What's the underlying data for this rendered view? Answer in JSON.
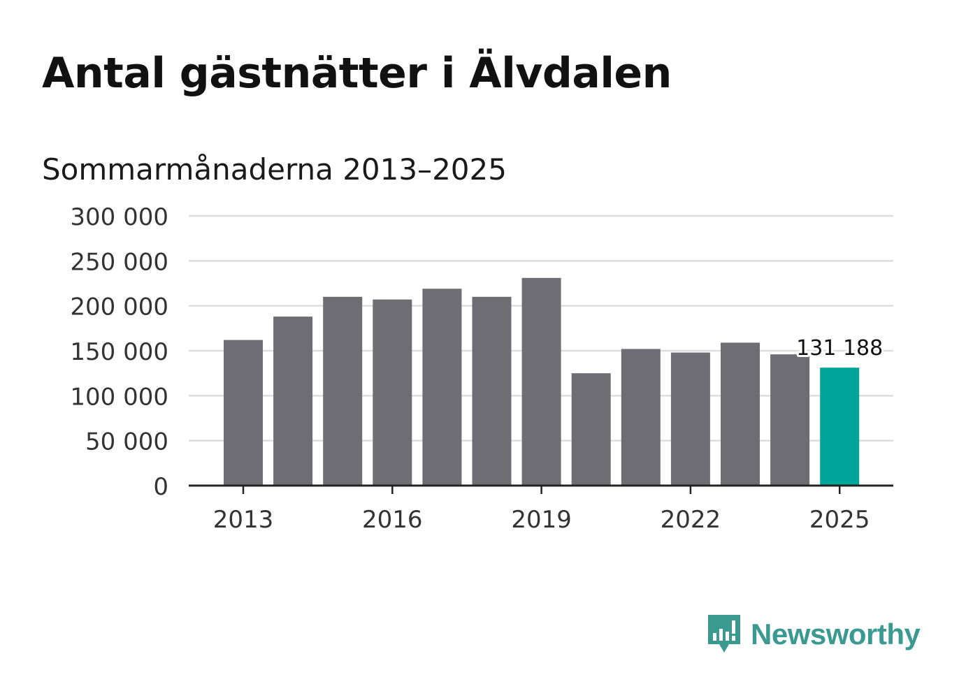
{
  "header": {
    "title": "Antal gästnätter i Älvdalen",
    "subtitle": "Sommarmånaderna 2013–2025"
  },
  "brand": {
    "name": "Newsworthy",
    "color": "#3a9a92",
    "icon": "bar-chart-speech-bubble-icon"
  },
  "colors": {
    "bar": "#6e6d73",
    "highlight": "#00a499",
    "grid": "#dddddd",
    "axis": "#222222"
  },
  "chart_data": {
    "type": "bar",
    "categories": [
      "2013",
      "2014",
      "2015",
      "2016",
      "2017",
      "2018",
      "2019",
      "2020",
      "2021",
      "2022",
      "2023",
      "2024",
      "2025"
    ],
    "values": [
      162000,
      188000,
      210000,
      207000,
      219000,
      210000,
      231000,
      125000,
      152000,
      148000,
      159000,
      146000,
      131188
    ],
    "highlight_index": 12,
    "annotation": "131 188",
    "yticks": [
      "0",
      "50 000",
      "100 000",
      "150 000",
      "200 000",
      "250 000",
      "300 000"
    ],
    "ytick_values": [
      0,
      50000,
      100000,
      150000,
      200000,
      250000,
      300000
    ],
    "xticks": [
      "2013",
      "2016",
      "2019",
      "2022",
      "2025"
    ],
    "ylim": [
      0,
      300000
    ],
    "grid": true,
    "legend": "none",
    "xlabel": "",
    "ylabel": ""
  }
}
